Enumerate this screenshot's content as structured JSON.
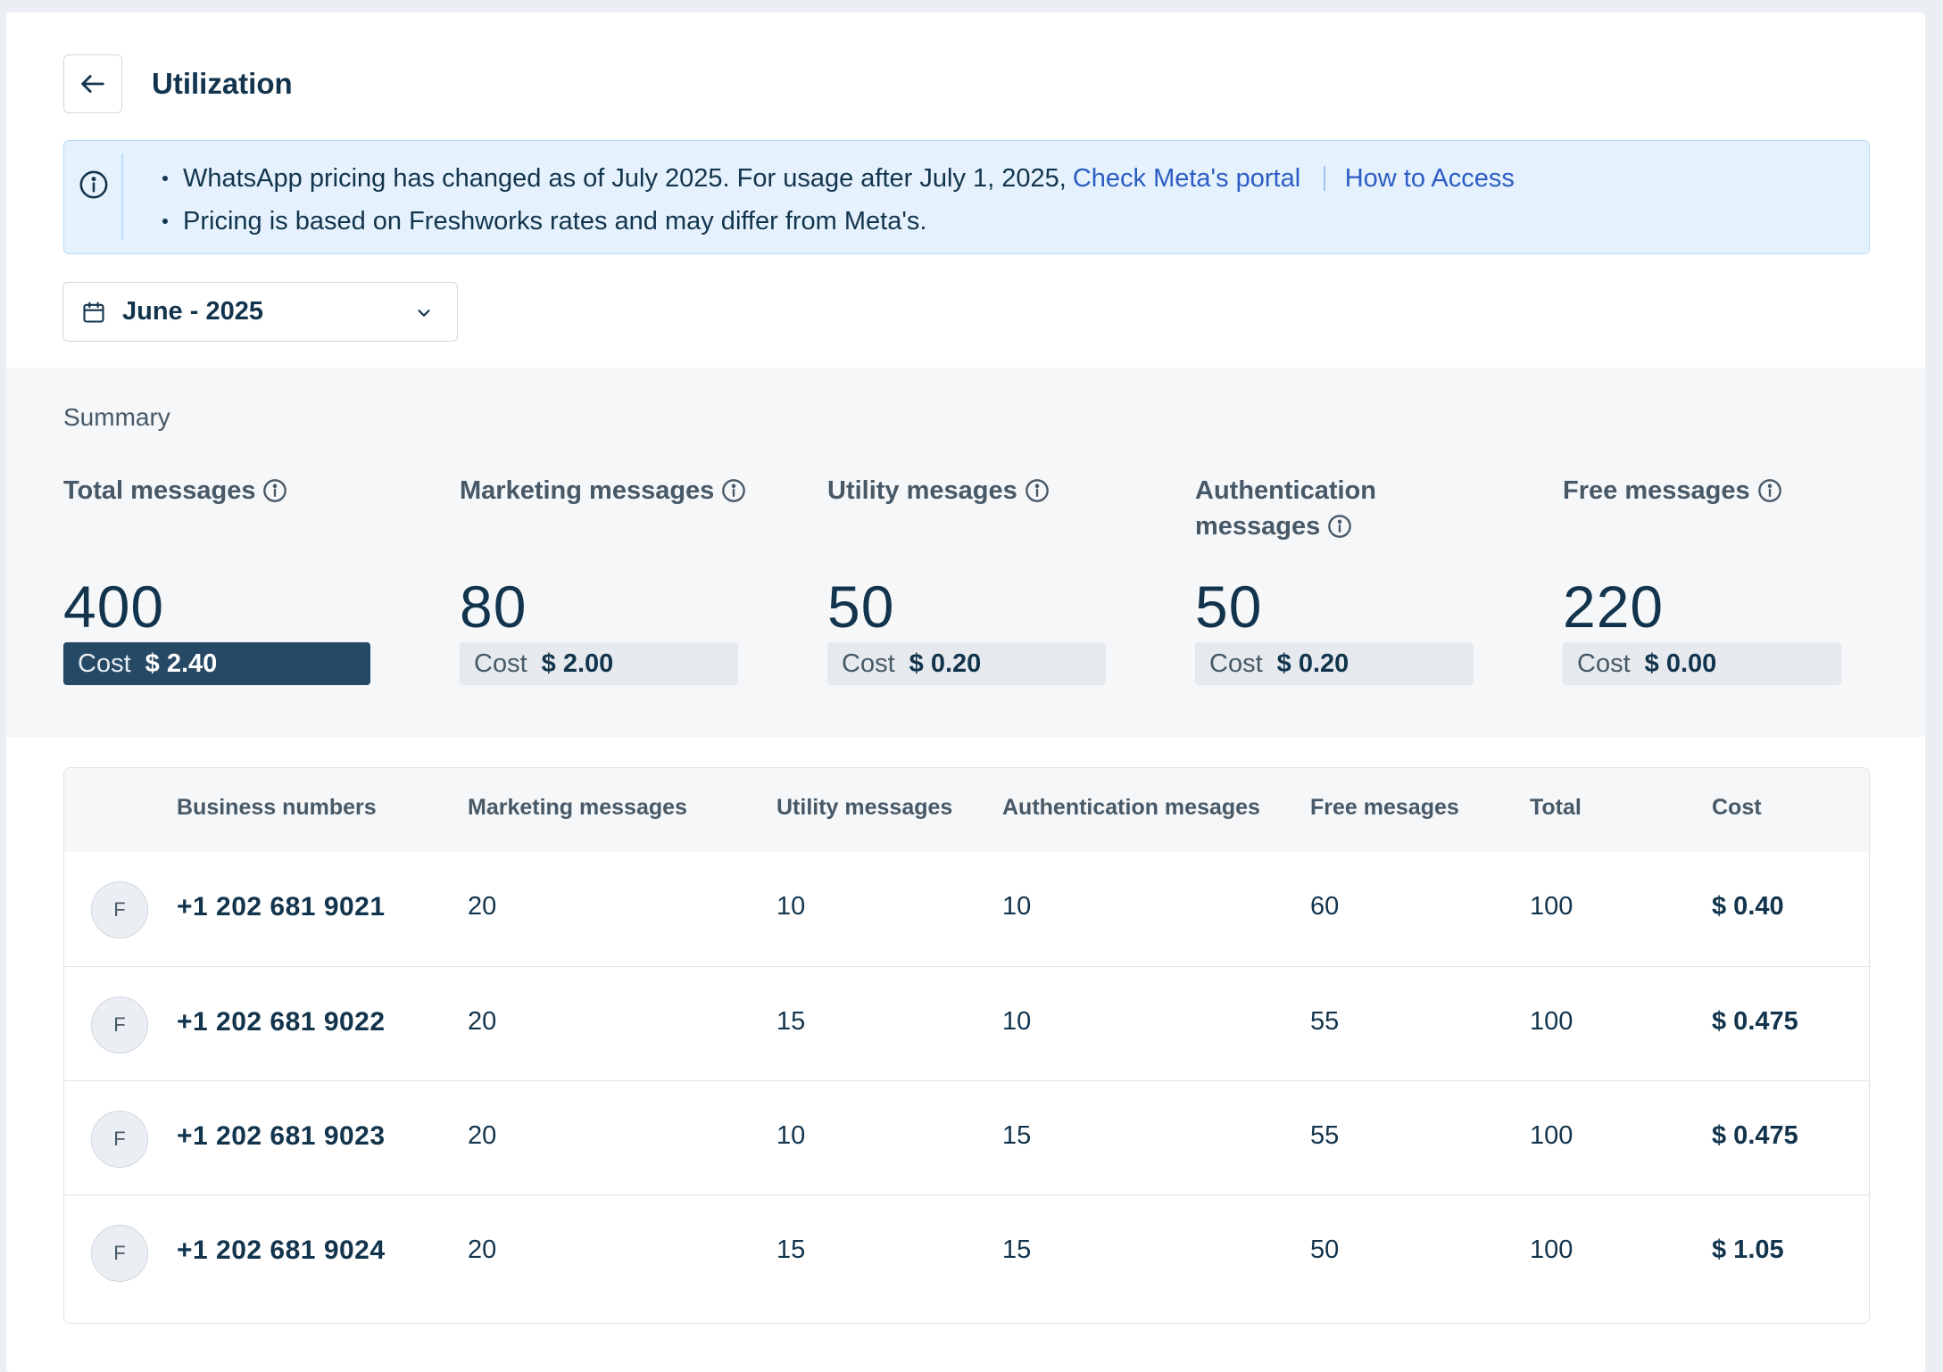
{
  "header": {
    "title": "Utilization"
  },
  "banner": {
    "line1_text": "WhatsApp pricing has changed as of July 2025. For usage after July 1, 2025,",
    "link1": "Check Meta's portal",
    "link2": "How to Access",
    "line2_text": "Pricing is based on Freshworks rates and may differ from Meta's."
  },
  "month_select": {
    "value": "June - 2025"
  },
  "summary": {
    "title": "Summary",
    "cost_label": "Cost",
    "metrics": [
      {
        "label": "Total messages",
        "value": "400",
        "cost": "$ 2.40"
      },
      {
        "label": "Marketing messages",
        "value": "80",
        "cost": "$ 2.00"
      },
      {
        "label": "Utility mesages",
        "value": "50",
        "cost": "$ 0.20"
      },
      {
        "label": "Authentication messages",
        "value": "50",
        "cost": "$ 0.20"
      },
      {
        "label": "Free messages",
        "value": "220",
        "cost": "$ 0.00"
      }
    ]
  },
  "table": {
    "columns": [
      "Business numbers",
      "Marketing messages",
      "Utility messages",
      "Authentication mesages",
      "Free mesages",
      "Total",
      "Cost"
    ],
    "rows": [
      {
        "avatar": "F",
        "number": "+1 202 681 9021",
        "marketing": "20",
        "utility": "10",
        "auth": "10",
        "free": "60",
        "total": "100",
        "cost": "$ 0.40"
      },
      {
        "avatar": "F",
        "number": "+1 202 681 9022",
        "marketing": "20",
        "utility": "15",
        "auth": "10",
        "free": "55",
        "total": "100",
        "cost": "$ 0.475"
      },
      {
        "avatar": "F",
        "number": "+1 202 681 9023",
        "marketing": "20",
        "utility": "10",
        "auth": "15",
        "free": "55",
        "total": "100",
        "cost": "$ 0.475"
      },
      {
        "avatar": "F",
        "number": "+1 202 681 9024",
        "marketing": "20",
        "utility": "15",
        "auth": "15",
        "free": "50",
        "total": "100",
        "cost": "$ 1.05"
      }
    ]
  },
  "colors": {
    "accent": "#264966",
    "link": "#2c5cc5",
    "banner_bg": "#e5f2fd"
  },
  "icons": [
    "arrow-left-icon",
    "info-icon",
    "calendar-icon",
    "chevron-down-icon"
  ]
}
